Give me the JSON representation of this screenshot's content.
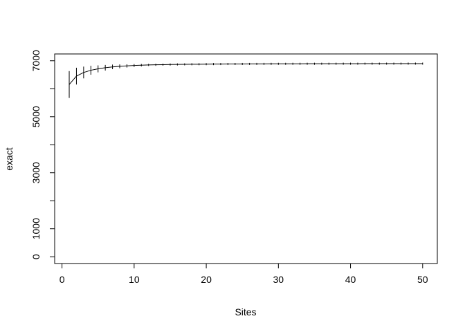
{
  "chart_data": {
    "type": "line",
    "title": "",
    "xlabel": "Sites",
    "ylabel": "exact",
    "xlim": [
      0,
      50
    ],
    "ylim": [
      0,
      7000
    ],
    "x_ticks": [
      0,
      10,
      20,
      30,
      40,
      50
    ],
    "y_ticks": [
      0,
      1000,
      2000,
      3000,
      4000,
      5000,
      6000,
      7000
    ],
    "y_tick_labels": [
      "0",
      "1000",
      "",
      "3000",
      "",
      "5000",
      "",
      "7000"
    ],
    "grid": false,
    "legend": "none",
    "line_color": "#000000",
    "error_bars": true,
    "series": [
      {
        "x": [
          1,
          2,
          3,
          4,
          5,
          6,
          7,
          8,
          9,
          10,
          11,
          12,
          13,
          14,
          15,
          16,
          17,
          18,
          19,
          20,
          21,
          22,
          23,
          24,
          25,
          26,
          27,
          28,
          29,
          30,
          31,
          32,
          33,
          34,
          35,
          36,
          37,
          38,
          39,
          40,
          41,
          42,
          43,
          44,
          45,
          46,
          47,
          48,
          49,
          50
        ],
        "y": [
          6150,
          6450,
          6580,
          6660,
          6710,
          6750,
          6780,
          6800,
          6815,
          6830,
          6840,
          6850,
          6855,
          6860,
          6865,
          6868,
          6871,
          6874,
          6876,
          6878,
          6880,
          6882,
          6883,
          6884,
          6885,
          6886,
          6887,
          6888,
          6889,
          6890,
          6890,
          6891,
          6891,
          6892,
          6892,
          6893,
          6893,
          6893,
          6894,
          6894,
          6894,
          6895,
          6895,
          6895,
          6896,
          6896,
          6896,
          6897,
          6897,
          6897
        ],
        "err": [
          480,
          300,
          210,
          160,
          125,
          100,
          82,
          68,
          58,
          50,
          44,
          38,
          33,
          29,
          26,
          23,
          20,
          18,
          16,
          14,
          13,
          12,
          11,
          10,
          9,
          8,
          8,
          7,
          7,
          6,
          6,
          5,
          5,
          5,
          5,
          4,
          4,
          4,
          4,
          4,
          3,
          3,
          3,
          3,
          3,
          3,
          2,
          2,
          2,
          2
        ]
      }
    ]
  }
}
